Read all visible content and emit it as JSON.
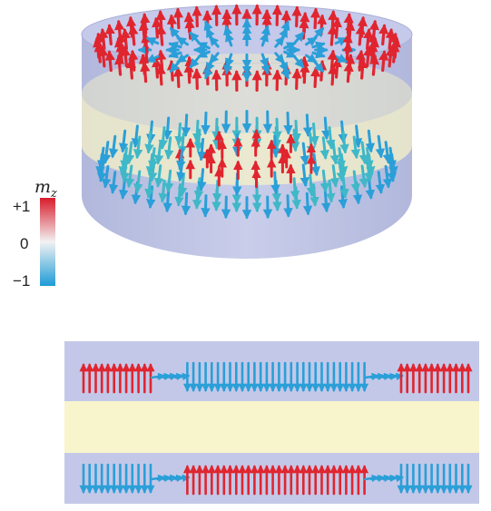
{
  "colorbar": {
    "label_main": "m",
    "label_sub": "z",
    "max_label": "+1",
    "mid_label": "0",
    "min_label": "−1",
    "colors": {
      "top": "#d81b2b",
      "mid": "#f2f2f2",
      "bottom": "#1e9bd7"
    }
  },
  "colors": {
    "vessel": "#b8bfe0",
    "spacer": "#f6f1c6",
    "slab_bg": "#c4c8e8",
    "red": "#e0252f",
    "blue": "#2a9fd8"
  },
  "views": {
    "top": "3d-cylinder-spin-texture",
    "bottom": "cross-section"
  }
}
